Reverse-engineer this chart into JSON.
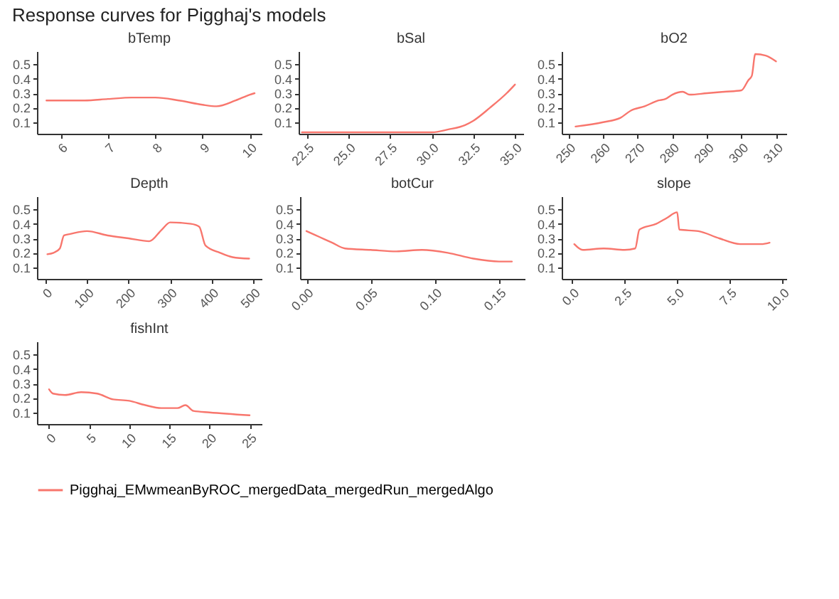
{
  "chart_data": [
    {
      "type": "line",
      "title": "bTemp",
      "annotations": [
        "Response curves for Pigghaj's models"
      ],
      "legend": "bottom",
      "x": [
        5.7,
        6.5,
        7,
        7.5,
        8,
        8.5,
        9,
        9.3,
        9.7,
        10,
        10.1
      ],
      "series": [
        {
          "name": "Pigghaj_EMwmeanByROC_mergedData_mergedRun_mergedAlgo",
          "color": "#f8766d",
          "values": [
            0.25,
            0.25,
            0.26,
            0.27,
            0.27,
            0.25,
            0.22,
            0.21,
            0.25,
            0.29,
            0.3
          ]
        }
      ],
      "xlim": [
        5.5,
        10.25
      ],
      "xticks": [
        6,
        7,
        8,
        9,
        10
      ],
      "ylim": [
        0.02,
        0.59
      ],
      "yticks": [
        0.1,
        0.2,
        0.3,
        0.4,
        0.5
      ]
    },
    {
      "type": "line",
      "title": "bSal",
      "x": [
        22.2,
        25,
        28,
        30,
        31,
        32,
        32.5,
        33.5,
        34.5,
        35
      ],
      "series": [
        {
          "color": "#f8766d",
          "values": [
            0.03,
            0.03,
            0.03,
            0.03,
            0.05,
            0.08,
            0.11,
            0.2,
            0.3,
            0.36
          ]
        }
      ],
      "xlim": [
        22,
        35.5
      ],
      "xticks": [
        {
          "value": 22.5,
          "label": "22.5"
        },
        {
          "value": 25,
          "label": "25.0"
        },
        {
          "value": 27.5,
          "label": "27.5"
        },
        {
          "value": 30,
          "label": "30.0"
        },
        {
          "value": 32.5,
          "label": "32.5"
        },
        {
          "value": 35,
          "label": "35.0"
        }
      ],
      "ylim": [
        0.02,
        0.59
      ],
      "yticks": [
        0.1,
        0.2,
        0.3,
        0.4,
        0.5
      ]
    },
    {
      "type": "line",
      "title": "bO2",
      "x": [
        252,
        260,
        265,
        268,
        272,
        276,
        278,
        280,
        283,
        285,
        290,
        295,
        300,
        302,
        303,
        304,
        307,
        310
      ],
      "series": [
        {
          "color": "#f8766d",
          "values": [
            0.07,
            0.1,
            0.13,
            0.18,
            0.21,
            0.25,
            0.26,
            0.29,
            0.31,
            0.29,
            0.3,
            0.31,
            0.32,
            0.39,
            0.42,
            0.57,
            0.56,
            0.52
          ]
        }
      ],
      "xlim": [
        248,
        313
      ],
      "xticks": [
        250,
        260,
        270,
        280,
        290,
        300,
        310
      ],
      "ylim": [
        0.02,
        0.59
      ],
      "yticks": [
        0.1,
        0.2,
        0.3,
        0.4,
        0.5
      ]
    },
    {
      "type": "line",
      "title": "Depth",
      "x": [
        5,
        20,
        35,
        45,
        60,
        100,
        150,
        200,
        250,
        280,
        300,
        350,
        370,
        385,
        420,
        450,
        490
      ],
      "series": [
        {
          "color": "#f8766d",
          "values": [
            0.19,
            0.2,
            0.23,
            0.32,
            0.33,
            0.35,
            0.32,
            0.3,
            0.28,
            0.36,
            0.41,
            0.4,
            0.38,
            0.25,
            0.2,
            0.17,
            0.16
          ]
        }
      ],
      "xlim": [
        -20,
        520
      ],
      "xticks": [
        0,
        100,
        200,
        300,
        400,
        500
      ],
      "ylim": [
        0.02,
        0.59
      ],
      "yticks": [
        0.1,
        0.2,
        0.3,
        0.4,
        0.5
      ]
    },
    {
      "type": "line",
      "title": "botCur",
      "x": [
        0,
        0.01,
        0.02,
        0.03,
        0.05,
        0.07,
        0.09,
        0.11,
        0.13,
        0.15,
        0.16
      ],
      "series": [
        {
          "color": "#f8766d",
          "values": [
            0.35,
            0.31,
            0.27,
            0.23,
            0.22,
            0.21,
            0.22,
            0.2,
            0.16,
            0.14,
            0.14
          ]
        }
      ],
      "xlim": [
        -0.005,
        0.17
      ],
      "xticks": [
        {
          "value": 0,
          "label": "0.00"
        },
        0.05,
        {
          "value": 0.1,
          "label": "0.10"
        },
        0.15
      ],
      "ylim": [
        0.02,
        0.59
      ],
      "yticks": [
        0.1,
        0.2,
        0.3,
        0.4,
        0.5
      ]
    },
    {
      "type": "line",
      "title": "slope",
      "x": [
        0.1,
        0.5,
        1.5,
        2.5,
        3,
        3.2,
        4,
        4.5,
        5,
        5.1,
        6,
        7,
        8,
        9,
        9.4
      ],
      "series": [
        {
          "color": "#f8766d",
          "values": [
            0.26,
            0.22,
            0.23,
            0.22,
            0.23,
            0.36,
            0.4,
            0.44,
            0.48,
            0.36,
            0.35,
            0.3,
            0.26,
            0.26,
            0.27
          ]
        }
      ],
      "xlim": [
        -0.5,
        10.2
      ],
      "xticks": [
        {
          "value": 0,
          "label": "0.0"
        },
        2.5,
        {
          "value": 5,
          "label": "5.0"
        },
        7.5,
        {
          "value": 10,
          "label": "10.0"
        }
      ],
      "ylim": [
        0.02,
        0.59
      ],
      "yticks": [
        0.1,
        0.2,
        0.3,
        0.4,
        0.5
      ]
    },
    {
      "type": "line",
      "title": "fishInt",
      "x": [
        0,
        0.5,
        2,
        4,
        6,
        8,
        10,
        12,
        14,
        16,
        17,
        18,
        20,
        25
      ],
      "series": [
        {
          "color": "#f8766d",
          "values": [
            0.26,
            0.23,
            0.22,
            0.24,
            0.23,
            0.19,
            0.18,
            0.15,
            0.13,
            0.13,
            0.15,
            0.11,
            0.1,
            0.08
          ]
        }
      ],
      "xlim": [
        -1.5,
        26.5
      ],
      "xticks": [
        0,
        5,
        10,
        15,
        20,
        25
      ],
      "ylim": [
        0.02,
        0.59
      ],
      "yticks": [
        0.1,
        0.2,
        0.3,
        0.4,
        0.5
      ]
    }
  ]
}
